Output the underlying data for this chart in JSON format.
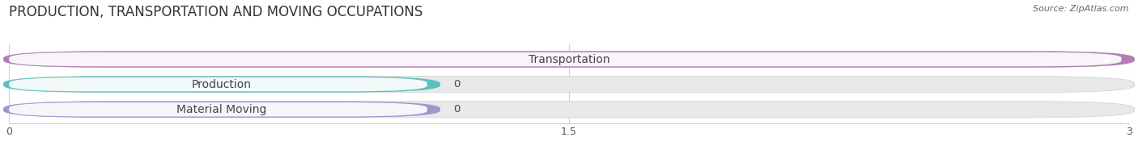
{
  "title": "PRODUCTION, TRANSPORTATION AND MOVING OCCUPATIONS",
  "source": "Source: ZipAtlas.com",
  "categories": [
    "Transportation",
    "Production",
    "Material Moving"
  ],
  "values": [
    3,
    0,
    0
  ],
  "bar_colors": [
    "#b07db5",
    "#5bbfbf",
    "#9999cc"
  ],
  "xlim": [
    0,
    3
  ],
  "xticks": [
    0,
    1.5,
    3
  ],
  "background_color": "#f0f0f0",
  "bar_bg_color": "#e8e8e8",
  "title_fontsize": 12,
  "label_fontsize": 10,
  "value_fontsize": 9.5
}
